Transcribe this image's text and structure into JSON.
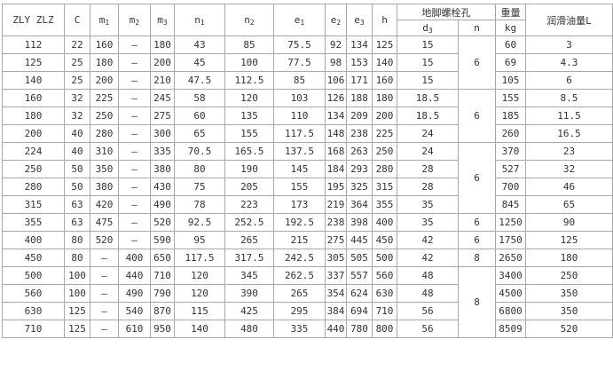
{
  "headers": {
    "model": "ZLY ZLZ",
    "c": "C",
    "m1": {
      "base": "m",
      "sub": "1"
    },
    "m2": {
      "base": "m",
      "sub": "2"
    },
    "m3": {
      "base": "m",
      "sub": "3"
    },
    "n1": {
      "base": "n",
      "sub": "1"
    },
    "n2": {
      "base": "n",
      "sub": "2"
    },
    "e1": {
      "base": "e",
      "sub": "1"
    },
    "e2": {
      "base": "e",
      "sub": "2"
    },
    "e3": {
      "base": "e",
      "sub": "3"
    },
    "h": "h",
    "bolt_group": "地脚螺栓孔",
    "d3": {
      "base": "d",
      "sub": "3"
    },
    "n": "n",
    "weight": "重量",
    "weight_unit": "kg",
    "oil": "润滑油量L"
  },
  "rows": [
    [
      "112",
      "22",
      "160",
      "—",
      "180",
      "43",
      "85",
      "75.5",
      "92",
      "134",
      "125",
      "15",
      "60",
      "3"
    ],
    [
      "125",
      "25",
      "180",
      "—",
      "200",
      "45",
      "100",
      "77.5",
      "98",
      "153",
      "140",
      "15",
      "69",
      "4.3"
    ],
    [
      "140",
      "25",
      "200",
      "—",
      "210",
      "47.5",
      "112.5",
      "85",
      "106",
      "171",
      "160",
      "15",
      "105",
      "6"
    ],
    [
      "160",
      "32",
      "225",
      "—",
      "245",
      "58",
      "120",
      "103",
      "126",
      "188",
      "180",
      "18.5",
      "155",
      "8.5"
    ],
    [
      "180",
      "32",
      "250",
      "—",
      "275",
      "60",
      "135",
      "110",
      "134",
      "209",
      "200",
      "18.5",
      "185",
      "11.5"
    ],
    [
      "200",
      "40",
      "280",
      "—",
      "300",
      "65",
      "155",
      "117.5",
      "148",
      "238",
      "225",
      "24",
      "260",
      "16.5"
    ],
    [
      "224",
      "40",
      "310",
      "—",
      "335",
      "70.5",
      "165.5",
      "137.5",
      "168",
      "263",
      "250",
      "24",
      "370",
      "23"
    ],
    [
      "250",
      "50",
      "350",
      "—",
      "380",
      "80",
      "190",
      "145",
      "184",
      "293",
      "280",
      "28",
      "527",
      "32"
    ],
    [
      "280",
      "50",
      "380",
      "—",
      "430",
      "75",
      "205",
      "155",
      "195",
      "325",
      "315",
      "28",
      "700",
      "46"
    ],
    [
      "315",
      "63",
      "420",
      "—",
      "490",
      "78",
      "223",
      "173",
      "219",
      "364",
      "355",
      "35",
      "845",
      "65"
    ],
    [
      "355",
      "63",
      "475",
      "—",
      "520",
      "92.5",
      "252.5",
      "192.5",
      "238",
      "398",
      "400",
      "35",
      "1250",
      "90"
    ],
    [
      "400",
      "80",
      "520",
      "—",
      "590",
      "95",
      "265",
      "215",
      "275",
      "445",
      "450",
      "42",
      "1750",
      "125"
    ],
    [
      "450",
      "80",
      "—",
      "400",
      "650",
      "117.5",
      "317.5",
      "242.5",
      "305",
      "505",
      "500",
      "42",
      "2650",
      "180"
    ],
    [
      "500",
      "100",
      "—",
      "440",
      "710",
      "120",
      "345",
      "262.5",
      "337",
      "557",
      "560",
      "48",
      "3400",
      "250"
    ],
    [
      "560",
      "100",
      "—",
      "490",
      "790",
      "120",
      "390",
      "265",
      "354",
      "624",
      "630",
      "48",
      "4500",
      "350"
    ],
    [
      "630",
      "125",
      "—",
      "540",
      "870",
      "115",
      "425",
      "295",
      "384",
      "694",
      "710",
      "56",
      "6800",
      "350"
    ],
    [
      "710",
      "125",
      "—",
      "610",
      "950",
      "140",
      "480",
      "335",
      "440",
      "780",
      "800",
      "56",
      "8509",
      "520"
    ]
  ],
  "n_groups": [
    {
      "value": "6",
      "rows": 3
    },
    {
      "value": "6",
      "rows": 3
    },
    {
      "value": "6",
      "rows": 4
    },
    {
      "value": "6",
      "rows": 1
    },
    {
      "value": "6",
      "rows": 1
    },
    {
      "value": "8",
      "rows": 1
    },
    {
      "value": "8",
      "rows": 4
    }
  ]
}
